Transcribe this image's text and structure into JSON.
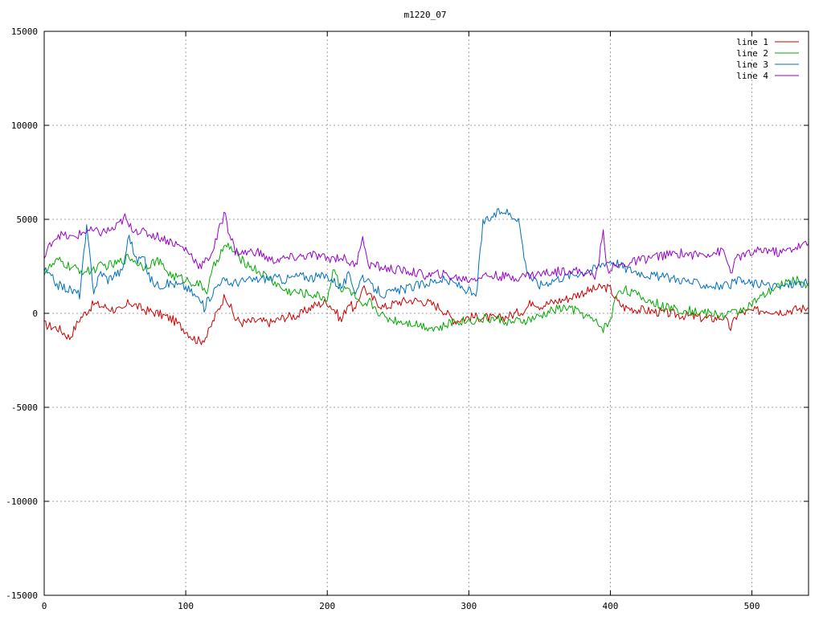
{
  "chart_data": {
    "type": "line",
    "title": "m1220_07",
    "xlabel": "",
    "ylabel": "",
    "xlim": [
      0,
      540
    ],
    "ylim": [
      -15000,
      15000
    ],
    "x_ticks": [
      0,
      100,
      200,
      300,
      400,
      500
    ],
    "y_ticks": [
      -15000,
      -10000,
      -5000,
      0,
      5000,
      10000,
      15000
    ],
    "grid": true,
    "legend_position": "top-right",
    "series": [
      {
        "name": "line 1",
        "color": "#cc0000",
        "x": [
          0,
          10,
          18,
          25,
          35,
          45,
          55,
          60,
          70,
          80,
          90,
          100,
          105,
          110,
          115,
          120,
          128,
          135,
          140,
          150,
          160,
          170,
          180,
          190,
          200,
          205,
          210,
          215,
          220,
          225,
          230,
          240,
          250,
          260,
          270,
          280,
          290,
          300,
          310,
          320,
          330,
          340,
          345,
          350,
          360,
          370,
          380,
          390,
          395,
          400,
          405,
          410,
          420,
          430,
          440,
          450,
          460,
          470,
          480,
          485,
          490,
          500,
          510,
          520,
          530,
          540
        ],
        "y": [
          -600,
          -800,
          -1300,
          -300,
          500,
          300,
          100,
          600,
          200,
          0,
          -300,
          -900,
          -1300,
          -1500,
          -1200,
          -300,
          1000,
          -300,
          -500,
          -400,
          -500,
          -200,
          -100,
          400,
          600,
          200,
          -400,
          600,
          100,
          1500,
          900,
          300,
          600,
          700,
          600,
          300,
          -400,
          -200,
          -200,
          -300,
          -100,
          200,
          700,
          400,
          600,
          800,
          1100,
          1300,
          1400,
          1300,
          600,
          300,
          200,
          100,
          0,
          -100,
          -200,
          -300,
          -200,
          -800,
          0,
          100,
          200,
          100,
          200,
          300
        ]
      },
      {
        "name": "line 2",
        "color": "#00aa00",
        "x": [
          0,
          10,
          20,
          30,
          40,
          50,
          60,
          70,
          80,
          90,
          100,
          110,
          115,
          120,
          125,
          130,
          140,
          150,
          160,
          170,
          180,
          190,
          200,
          205,
          210,
          215,
          220,
          225,
          230,
          240,
          250,
          260,
          270,
          280,
          290,
          300,
          310,
          320,
          330,
          340,
          350,
          360,
          370,
          380,
          390,
          395,
          400,
          405,
          410,
          420,
          430,
          440,
          450,
          460,
          470,
          480,
          490,
          500,
          510,
          520,
          530,
          540
        ],
        "y": [
          2200,
          2800,
          2400,
          2200,
          2500,
          2600,
          3000,
          2500,
          2800,
          2000,
          1800,
          1500,
          1200,
          2500,
          3300,
          3600,
          2800,
          2300,
          1800,
          1200,
          1100,
          1000,
          800,
          2500,
          1200,
          1300,
          800,
          200,
          600,
          -200,
          -400,
          -500,
          -700,
          -800,
          -400,
          -400,
          -300,
          -300,
          -500,
          -400,
          -200,
          200,
          300,
          0,
          -500,
          -800,
          -400,
          1200,
          1300,
          900,
          600,
          300,
          200,
          100,
          0,
          -100,
          100,
          500,
          1000,
          1500,
          1800,
          1500
        ]
      },
      {
        "name": "line 3",
        "color": "#0070c0",
        "x": [
          0,
          10,
          20,
          25,
          30,
          35,
          40,
          45,
          50,
          55,
          60,
          65,
          70,
          75,
          80,
          90,
          100,
          110,
          113,
          118,
          125,
          130,
          140,
          150,
          160,
          170,
          180,
          190,
          200,
          210,
          215,
          220,
          225,
          230,
          240,
          250,
          260,
          270,
          280,
          290,
          300,
          305,
          310,
          320,
          325,
          330,
          335,
          340,
          345,
          350,
          360,
          370,
          380,
          390,
          395,
          400,
          405,
          410,
          420,
          430,
          440,
          450,
          460,
          470,
          480,
          490,
          500,
          510,
          520,
          530,
          540
        ],
        "y": [
          2300,
          1500,
          1200,
          1000,
          4500,
          1200,
          2200,
          1800,
          2100,
          2200,
          4200,
          2800,
          3000,
          1800,
          1500,
          1600,
          1400,
          700,
          300,
          1000,
          1800,
          1600,
          1700,
          1800,
          1900,
          1800,
          2000,
          1900,
          2000,
          1400,
          2000,
          1200,
          2000,
          1500,
          1000,
          1200,
          1400,
          1600,
          1800,
          1600,
          1200,
          800,
          4800,
          5300,
          5500,
          5200,
          5100,
          2600,
          1800,
          1500,
          1800,
          2000,
          2200,
          2400,
          2700,
          2800,
          2700,
          2400,
          2200,
          2000,
          1900,
          1800,
          1600,
          1500,
          1400,
          1700,
          1600,
          1500,
          1400,
          1600,
          1600
        ]
      },
      {
        "name": "line 4",
        "color": "#9900cc",
        "x": [
          0,
          5,
          10,
          20,
          30,
          40,
          50,
          57,
          60,
          70,
          80,
          90,
          100,
          105,
          110,
          115,
          120,
          125,
          128,
          130,
          135,
          140,
          150,
          160,
          170,
          180,
          190,
          200,
          210,
          220,
          225,
          228,
          230,
          240,
          250,
          260,
          270,
          280,
          290,
          300,
          310,
          320,
          330,
          340,
          350,
          360,
          370,
          380,
          390,
          395,
          398,
          400,
          410,
          420,
          430,
          440,
          450,
          460,
          470,
          480,
          485,
          490,
          500,
          510,
          520,
          530,
          540
        ],
        "y": [
          2900,
          3800,
          4200,
          4000,
          4400,
          4300,
          4500,
          5100,
          4600,
          4300,
          4100,
          3800,
          3400,
          3000,
          2500,
          2800,
          3500,
          4800,
          5400,
          4500,
          3300,
          3200,
          3300,
          2800,
          2900,
          3000,
          3100,
          2900,
          3000,
          2500,
          4200,
          2800,
          2600,
          2400,
          2300,
          2200,
          2000,
          2100,
          1900,
          1800,
          2000,
          2000,
          1900,
          2000,
          2100,
          2200,
          2300,
          2200,
          2000,
          4300,
          2300,
          2400,
          2600,
          2800,
          3000,
          3100,
          3200,
          3100,
          3200,
          3300,
          2200,
          3000,
          3200,
          3400,
          3200,
          3500,
          3700
        ]
      }
    ]
  }
}
